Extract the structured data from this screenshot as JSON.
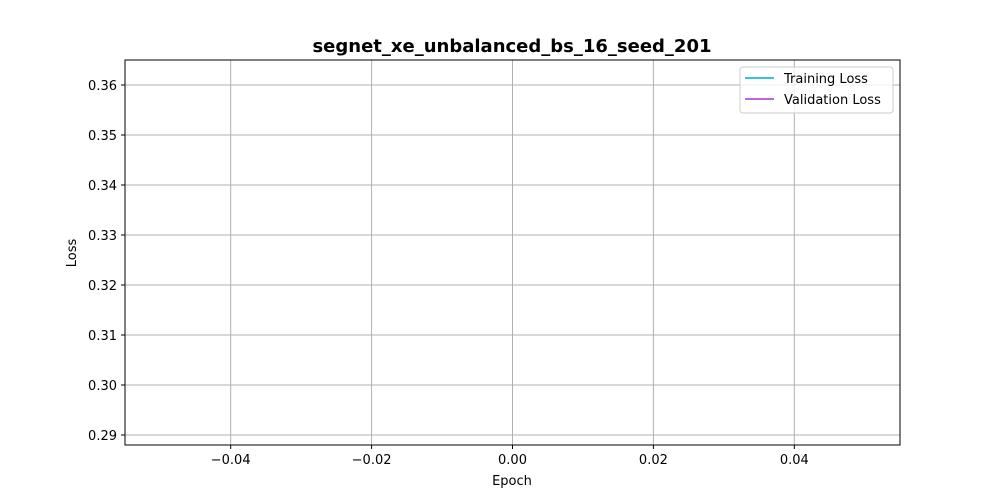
{
  "chart_data": {
    "type": "line",
    "title": "segnet_xe_unbalanced_bs_16_seed_201",
    "xlabel": "Epoch",
    "ylabel": "Loss",
    "xlim": [
      -0.055,
      0.055
    ],
    "ylim": [
      0.288,
      0.365
    ],
    "xticks": [
      -0.04,
      -0.02,
      0.0,
      0.02,
      0.04
    ],
    "xtick_labels": [
      "−0.04",
      "−0.02",
      "0.00",
      "0.02",
      "0.04"
    ],
    "yticks": [
      0.29,
      0.3,
      0.31,
      0.32,
      0.33,
      0.34,
      0.35,
      0.36
    ],
    "ytick_labels": [
      "0.29",
      "0.30",
      "0.31",
      "0.32",
      "0.33",
      "0.34",
      "0.35",
      "0.36"
    ],
    "grid": true,
    "legend_position": "top-right",
    "series": [
      {
        "name": "Training Loss",
        "color": "#1ab8e8",
        "x": [],
        "y": []
      },
      {
        "name": "Validation Loss",
        "color": "#b44fd6",
        "x": [],
        "y": []
      }
    ]
  }
}
